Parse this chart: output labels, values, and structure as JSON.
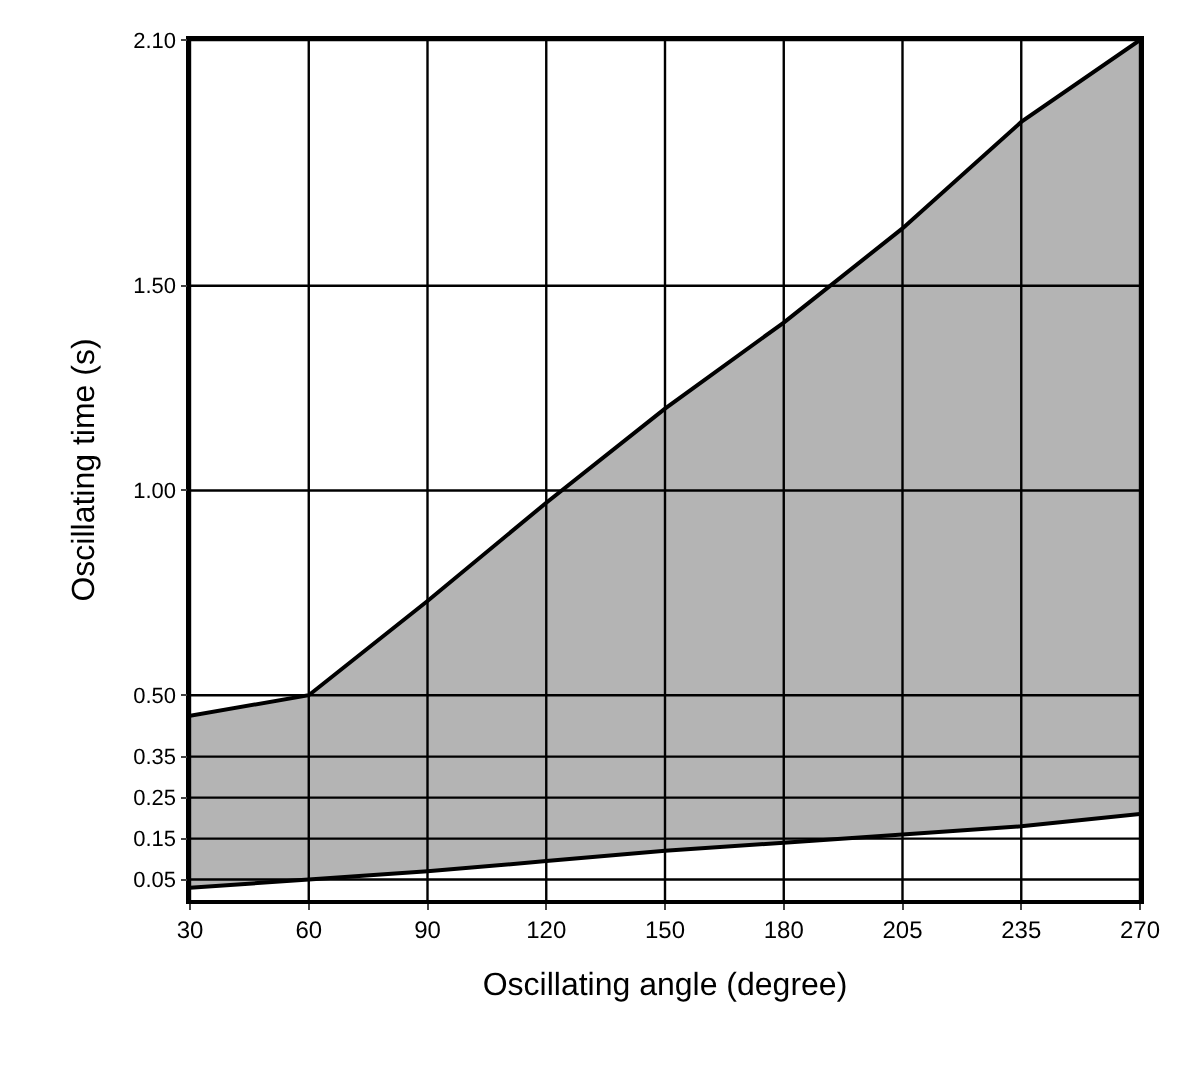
{
  "chart_data": {
    "type": "area",
    "xlabel": "Oscillating angle (degree)",
    "ylabel": "Oscillating time (s)",
    "categories": [
      "30",
      "60",
      "90",
      "120",
      "150",
      "180",
      "205",
      "235",
      "270"
    ],
    "series": [
      {
        "type": "line",
        "values": [
          0.03,
          0.05,
          0.07,
          0.095,
          0.12,
          0.14,
          0.16,
          0.18,
          0.21
        ]
      },
      {
        "color": "#b4b4b4",
        "values": [
          0.45,
          0.5,
          0.73,
          0.97,
          1.2,
          1.41,
          1.64,
          1.9,
          2.1
        ]
      }
    ],
    "ylim": [
      0,
      2.1
    ],
    "yticks": [
      {
        "value": 0.05,
        "label": "0.05"
      },
      {
        "value": 0.15,
        "label": "0.15"
      },
      {
        "value": 0.25,
        "label": "0.25"
      },
      {
        "value": 0.35,
        "label": "0.35"
      },
      {
        "value": 0.5,
        "label": "0.50"
      },
      {
        "value": 1.0,
        "label": "1.00"
      },
      {
        "value": 1.5,
        "label": "1.50"
      },
      {
        "value": 2.1,
        "label": "2.10"
      }
    ],
    "grid": true
  }
}
